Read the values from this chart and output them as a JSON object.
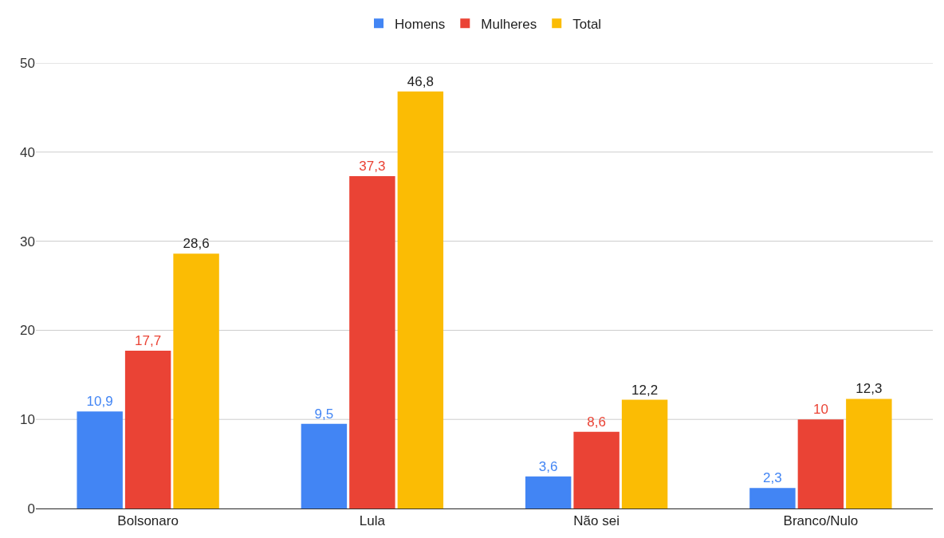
{
  "chart_data": {
    "type": "bar",
    "categories": [
      "Bolsonaro",
      "Lula",
      "Não sei",
      "Branco/Nulo"
    ],
    "series": [
      {
        "name": "Homens",
        "color": "#4285f4",
        "values": [
          10.9,
          9.5,
          3.6,
          2.3
        ],
        "value_labels": [
          "10,9",
          "9,5",
          "3,6",
          "2,3"
        ]
      },
      {
        "name": "Mulheres",
        "color": "#ea4335",
        "values": [
          17.7,
          37.3,
          8.6,
          10
        ],
        "value_labels": [
          "17,7",
          "37,3",
          "8,6",
          "10"
        ]
      },
      {
        "name": "Total",
        "color": "#fbbc04",
        "values": [
          28.6,
          46.8,
          12.2,
          12.3
        ],
        "value_labels": [
          "28,6",
          "46,8",
          "12,2",
          "12,3"
        ]
      }
    ],
    "ylim": [
      0,
      50
    ],
    "yticks": [
      0,
      10,
      20,
      30,
      40,
      50
    ],
    "grid": "y",
    "legend": "top"
  }
}
